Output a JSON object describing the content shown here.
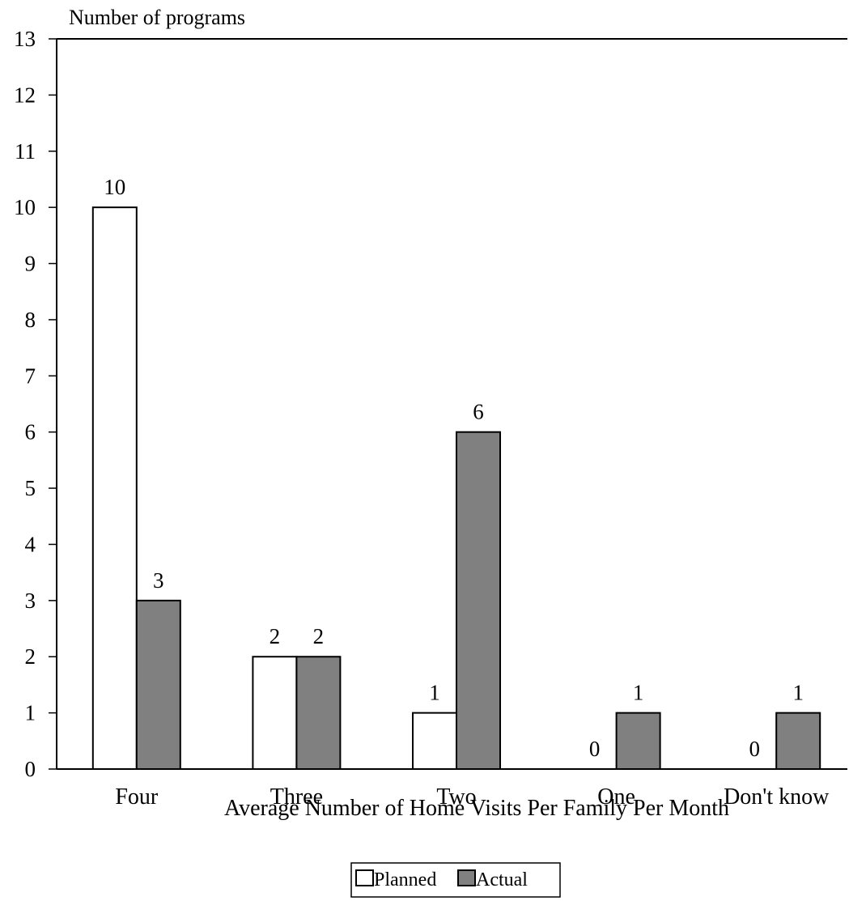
{
  "chart_data": {
    "type": "bar",
    "ylabel": "Number of programs",
    "xlabel": "Average Number of Home Visits Per Family Per Month",
    "categories": [
      "Four",
      "Three",
      "Two",
      "One",
      "Don't know"
    ],
    "series": [
      {
        "name": "Planned",
        "values": [
          10,
          2,
          1,
          0,
          0
        ],
        "color": "#ffffff"
      },
      {
        "name": "Actual",
        "values": [
          3,
          2,
          6,
          1,
          1
        ],
        "color": "#808080"
      }
    ],
    "ylim": [
      0,
      13
    ],
    "yticks": [
      "0",
      "1",
      "2",
      "3",
      "4",
      "5",
      "6",
      "7",
      "8",
      "9",
      "10",
      "11",
      "12",
      "13"
    ],
    "data_labels": [
      [
        "10",
        "2",
        "1",
        "0",
        "0"
      ],
      [
        "3",
        "2",
        "6",
        "1",
        "1"
      ]
    ],
    "grid": false,
    "legend_position": "bottom-center"
  }
}
